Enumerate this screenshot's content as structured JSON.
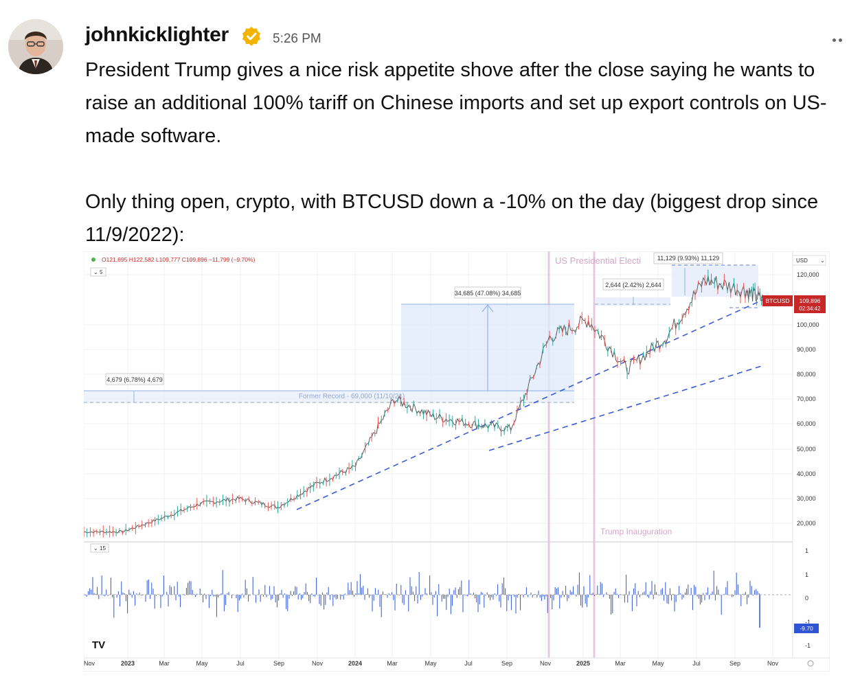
{
  "post": {
    "username": "johnkicklighter",
    "time": "5:26 PM",
    "paragraphs": [
      "President Trump gives a nice risk appetite shove after the close saying he wants to raise an additional 100% tariff on Chinese imports and set up export controls on US-made software.",
      "Only thing open, crypto, with BTCUSD down a -10% on the day (biggest drop since 11/9/2022):"
    ]
  },
  "colors": {
    "verified": "#f2b400",
    "accent_blue": "#3a5bd9",
    "price_red": "#c62828",
    "indicator_blue": "#2f55d4"
  },
  "chart_data": {
    "type": "line",
    "ohlc_label": "O121,695 H122,582 L109,777 C109,896 −11,799 (−9.70%)",
    "interval": "5",
    "currency": "USD",
    "y_ticks": [
      "120,000",
      "100,000",
      "90,000",
      "80,000",
      "70,000",
      "60,000",
      "50,000",
      "40,000",
      "30,000",
      "20,000"
    ],
    "x_ticks": [
      "Nov",
      "2023",
      "Mar",
      "May",
      "Jul",
      "Sep",
      "Nov",
      "2024",
      "Mar",
      "May",
      "Jul",
      "Sep",
      "Nov",
      "2025",
      "Mar",
      "May",
      "Jul",
      "Sep",
      "Nov"
    ],
    "price_tag": {
      "symbol": "BTCUSD",
      "value": "109,896",
      "countdown": "02:34:42"
    },
    "annotations": {
      "us_election": "US Presidential Electi",
      "inauguration": "Trump Inauguration",
      "former_record": "Former Record - 69,000 (11/10/21)",
      "range1": "4,679 (6.78%) 4,679",
      "range2": "34,685 (47.08%) 34,685",
      "range3": "2,644 (2.42%) 2,644",
      "range4": "11,129 (9.93%) 11,129"
    },
    "series": [
      {
        "name": "BTCUSD",
        "x": [
          "2022-11",
          "2023-01",
          "2023-03",
          "2023-05",
          "2023-07",
          "2023-09",
          "2023-11",
          "2024-01",
          "2024-03",
          "2024-05",
          "2024-07",
          "2024-09",
          "2024-11",
          "2025-01",
          "2025-03",
          "2025-05",
          "2025-07",
          "2025-09",
          "2025-10"
        ],
        "y": [
          16500,
          16600,
          22000,
          28000,
          30000,
          26500,
          36000,
          43000,
          70000,
          63000,
          60000,
          58000,
          95000,
          102000,
          82000,
          95000,
          118000,
          114000,
          109896
        ]
      }
    ],
    "indicator": {
      "interval": "15",
      "y_ticks": [
        "1",
        "1",
        "0",
        "-1",
        "-1"
      ],
      "last_value": "-9.70"
    }
  }
}
